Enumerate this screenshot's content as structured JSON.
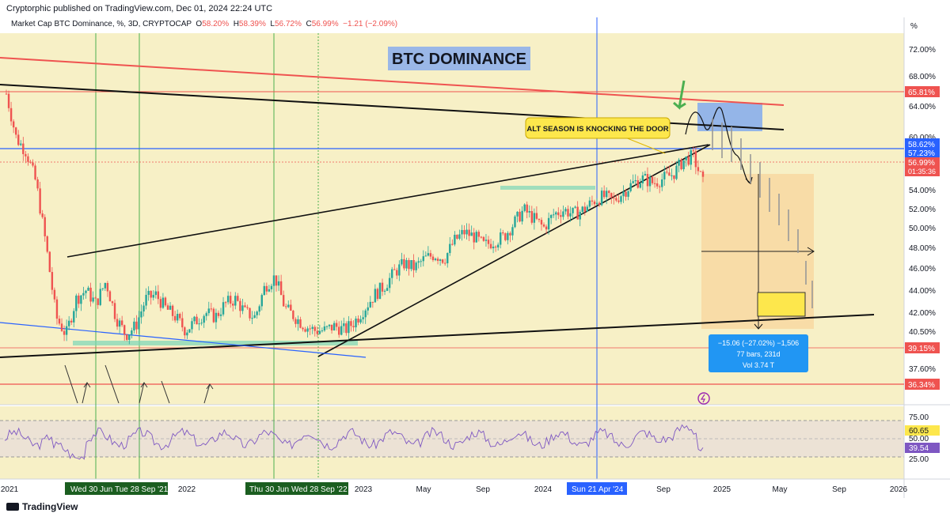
{
  "header": {
    "published": "Cryptorphic published on TradingView.com, Dec 01, 2024 22:24 UTC",
    "symbol": "Market Cap BTC Dominance, %, 3D, CRYPTOCAP",
    "o_label": "O",
    "o": "58.20%",
    "h_label": "H",
    "h": "58.39%",
    "l_label": "L",
    "l": "56.72%",
    "c_label": "C",
    "c": "56.99%",
    "change": "−1.21 (−2.09%)"
  },
  "brand": "TradingView",
  "colors": {
    "background": "#f7f0c6",
    "candle_up": "#26a69a",
    "candle_down": "#ef5350",
    "red_line": "#ef5350",
    "blue_line": "#2962ff",
    "rsi_line": "#7e57c2"
  },
  "chart_data": {
    "type": "candlestick",
    "title": "BTC DOMINANCE",
    "unit_label": "%",
    "y_ticks": [
      "72.00%",
      "68.00%",
      "64.00%",
      "60.00%",
      "54.00%",
      "52.00%",
      "50.00%",
      "48.00%",
      "46.00%",
      "44.00%",
      "42.00%",
      "40.50%",
      "37.60%"
    ],
    "x_ticks": [
      "2021",
      "2022",
      "2023",
      "May",
      "Sep",
      "2024",
      "Sep",
      "2025",
      "May",
      "Sep",
      "2026"
    ],
    "date_markers": [
      "Wed 30 Jun",
      "Tue 28 Sep '21",
      "Thu 30 Jun",
      "Wed 28 Sep '22",
      "Sun 21 Apr '24"
    ],
    "price_labels": {
      "top_red": "65.81%",
      "blue": "58.62%",
      "mid": "57.23%",
      "current": "56.99%",
      "countdown": "01:35:36",
      "lower_red": "39.15%",
      "bottom_red": "36.34%"
    },
    "series": [
      {
        "points": [
          [
            0,
            67
          ],
          [
            1,
            62
          ],
          [
            2,
            60.5
          ],
          [
            3,
            57
          ],
          [
            4,
            50
          ],
          [
            5,
            42
          ],
          [
            6,
            40
          ],
          [
            7,
            44
          ],
          [
            8,
            45
          ],
          [
            9,
            43.5
          ],
          [
            10,
            46
          ],
          [
            11,
            42
          ],
          [
            12,
            40
          ],
          [
            13,
            41
          ],
          [
            14,
            44
          ],
          [
            15,
            44.5
          ],
          [
            16,
            43
          ],
          [
            17,
            42
          ],
          [
            18,
            40.5
          ],
          [
            19,
            41.5
          ],
          [
            20,
            42.5
          ],
          [
            21,
            42
          ],
          [
            22,
            43.5
          ],
          [
            23,
            44
          ],
          [
            24,
            42.5
          ],
          [
            25,
            42
          ],
          [
            26,
            45.5
          ],
          [
            27,
            46.5
          ],
          [
            28,
            43
          ],
          [
            29,
            42
          ],
          [
            30,
            41
          ],
          [
            31,
            40.5
          ],
          [
            32,
            40.5
          ],
          [
            33,
            41
          ],
          [
            34,
            40.5
          ],
          [
            35,
            41.5
          ],
          [
            36,
            43
          ],
          [
            37,
            44.5
          ],
          [
            38,
            45.5
          ],
          [
            39,
            47
          ],
          [
            40,
            48
          ],
          [
            41,
            47.5
          ],
          [
            42,
            48.5
          ],
          [
            43,
            49
          ],
          [
            44,
            48.5
          ],
          [
            45,
            50.5
          ],
          [
            46,
            51.5
          ],
          [
            47,
            51
          ],
          [
            48,
            50
          ],
          [
            49,
            50.5
          ],
          [
            50,
            51
          ],
          [
            51,
            52.5
          ],
          [
            52,
            54
          ],
          [
            53,
            53
          ],
          [
            54,
            52
          ],
          [
            55,
            53.5
          ],
          [
            56,
            54
          ],
          [
            57,
            53.5
          ],
          [
            58,
            54
          ],
          [
            59,
            55
          ],
          [
            60,
            55.5
          ],
          [
            61,
            55
          ],
          [
            62,
            56
          ],
          [
            63,
            57
          ],
          [
            64,
            57.5
          ],
          [
            65,
            57
          ],
          [
            66,
            57.5
          ],
          [
            67,
            58
          ],
          [
            68,
            59.5
          ],
          [
            69,
            60
          ],
          [
            70,
            57
          ]
        ],
        "x_range": [
          0,
          70
        ],
        "note": ""
      }
    ],
    "rsi": {
      "values": [
        "75.00",
        "60.65",
        "50.00",
        "39.54",
        "25.00"
      ]
    },
    "annotations": {
      "callout": "ALT SEASON IS KNOCKING THE DOOR",
      "measure_line1": "−15.06 (−27.02%) −1,506",
      "measure_line2": "77 bars, 231d",
      "measure_line3": "Vol 3.74 T"
    },
    "ylim": [
      36,
      74
    ],
    "grid": false
  }
}
